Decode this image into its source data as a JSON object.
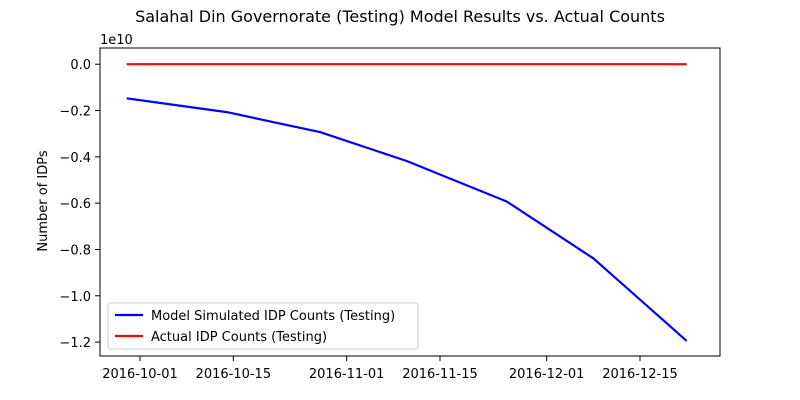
{
  "chart_data": {
    "type": "line",
    "title": "Salahal Din Governorate (Testing) Model Results vs. Actual Counts",
    "xlabel": "",
    "ylabel": "Number of IDPs",
    "y_offset_label": "1e10",
    "y_scale_factor": 10000000000,
    "xlim": [
      "2016-09-25",
      "2016-12-27"
    ],
    "ylim": [
      -12.6,
      0.7
    ],
    "x_ticks": [
      "2016-10-01",
      "2016-10-15",
      "2016-11-01",
      "2016-11-15",
      "2016-12-01",
      "2016-12-15"
    ],
    "y_ticks": [
      0.0,
      -0.2,
      -0.4,
      -0.6,
      -0.8,
      -1.0,
      -1.2
    ],
    "y_tick_labels": [
      "0.0",
      "−0.2",
      "−0.4",
      "−0.6",
      "−0.8",
      "−1.0",
      "−1.2"
    ],
    "grid": false,
    "legend_position": "lower-left",
    "series": [
      {
        "name": "Model Simulated IDP Counts (Testing)",
        "color": "#0000ff",
        "x": [
          "2016-09-29",
          "2016-10-14",
          "2016-10-28",
          "2016-11-10",
          "2016-11-25",
          "2016-12-08",
          "2016-12-22"
        ],
        "y": [
          -1.47,
          -2.07,
          -2.93,
          -4.18,
          -5.93,
          -8.38,
          -11.95
        ]
      },
      {
        "name": "Actual IDP Counts (Testing)",
        "color": "#ff0000",
        "x": [
          "2016-09-29",
          "2016-12-22"
        ],
        "y": [
          0.0,
          0.0
        ]
      }
    ]
  }
}
